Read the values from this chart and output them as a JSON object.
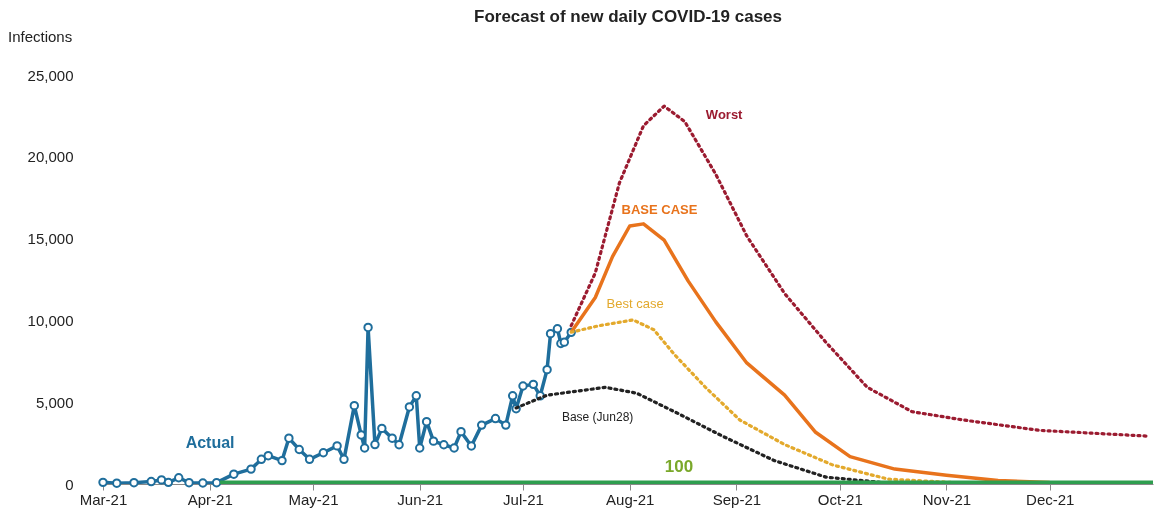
{
  "chart_data": {
    "type": "line",
    "title": "Forecast of new daily COVID-19 cases",
    "ylabel": "Infections",
    "xlim": [
      "2021-03-01",
      "2021-12-31"
    ],
    "xticks": [
      {
        "value": "2021-03-01",
        "label": "Mar-21"
      },
      {
        "value": "2021-04-01",
        "label": "Apr-21"
      },
      {
        "value": "2021-05-01",
        "label": "May-21"
      },
      {
        "value": "2021-06-01",
        "label": "Jun-21"
      },
      {
        "value": "2021-07-01",
        "label": "Jul-21"
      },
      {
        "value": "2021-08-01",
        "label": "Aug-21"
      },
      {
        "value": "2021-09-01",
        "label": "Sep-21"
      },
      {
        "value": "2021-10-01",
        "label": "Oct-21"
      },
      {
        "value": "2021-11-01",
        "label": "Nov-21"
      },
      {
        "value": "2021-12-01",
        "label": "Dec-21"
      }
    ],
    "ylim": [
      0,
      25000
    ],
    "yticks": [
      {
        "value": 0,
        "label": "0"
      },
      {
        "value": 5000,
        "label": "5,000"
      },
      {
        "value": 10000,
        "label": "10,000"
      },
      {
        "value": 15000,
        "label": "15,000"
      },
      {
        "value": 20000,
        "label": "20,000"
      },
      {
        "value": 25000,
        "label": "25,000"
      }
    ],
    "grid": false,
    "series": [
      {
        "name": "Actual",
        "color": "#1f6e9c",
        "marker": "circle",
        "line_style": "solid",
        "x": [
          "2021-03-01",
          "2021-03-05",
          "2021-03-10",
          "2021-03-15",
          "2021-03-18",
          "2021-03-20",
          "2021-03-23",
          "2021-03-26",
          "2021-03-30",
          "2021-04-03",
          "2021-04-08",
          "2021-04-13",
          "2021-04-16",
          "2021-04-18",
          "2021-04-22",
          "2021-04-24",
          "2021-04-27",
          "2021-04-30",
          "2021-05-04",
          "2021-05-08",
          "2021-05-10",
          "2021-05-13",
          "2021-05-15",
          "2021-05-16",
          "2021-05-17",
          "2021-05-19",
          "2021-05-21",
          "2021-05-24",
          "2021-05-26",
          "2021-05-29",
          "2021-05-31",
          "2021-06-01",
          "2021-06-03",
          "2021-06-05",
          "2021-06-08",
          "2021-06-11",
          "2021-06-13",
          "2021-06-16",
          "2021-06-19",
          "2021-06-23",
          "2021-06-26",
          "2021-06-28",
          "2021-06-29",
          "2021-07-01",
          "2021-07-04",
          "2021-07-06",
          "2021-07-08",
          "2021-07-09",
          "2021-07-11",
          "2021-07-12",
          "2021-07-13",
          "2021-07-15"
        ],
        "values": [
          100,
          50,
          80,
          150,
          250,
          100,
          380,
          80,
          60,
          80,
          600,
          910,
          1510,
          1730,
          1430,
          2800,
          2110,
          1510,
          1910,
          2330,
          1510,
          4790,
          3000,
          2200,
          9570,
          2410,
          3400,
          2800,
          2400,
          4710,
          5390,
          2200,
          3810,
          2620,
          2400,
          2200,
          3200,
          2320,
          3600,
          4000,
          3600,
          5390,
          4600,
          5990,
          6090,
          5390,
          6990,
          9190,
          9490,
          8590,
          8670,
          9270
        ]
      },
      {
        "name": "Worst",
        "color": "#9b1b30",
        "marker": "none",
        "line_style": "dotted",
        "x": [
          "2021-07-15",
          "2021-07-22",
          "2021-07-29",
          "2021-08-05",
          "2021-08-11",
          "2021-08-17",
          "2021-08-26",
          "2021-09-04",
          "2021-09-15",
          "2021-09-27",
          "2021-10-09",
          "2021-10-22",
          "2021-11-06",
          "2021-11-28",
          "2021-12-30"
        ],
        "values": [
          9680,
          12900,
          18400,
          21900,
          23100,
          22150,
          18930,
          15160,
          11640,
          8660,
          5910,
          4420,
          3910,
          3280,
          2920
        ]
      },
      {
        "name": "BASE CASE",
        "color": "#e8731c",
        "marker": "none",
        "line_style": "solid",
        "x": [
          "2021-07-15",
          "2021-07-22",
          "2021-07-27",
          "2021-08-01",
          "2021-08-05",
          "2021-08-11",
          "2021-08-18",
          "2021-08-26",
          "2021-09-04",
          "2021-09-15",
          "2021-09-24",
          "2021-10-04",
          "2021-10-17",
          "2021-11-01",
          "2021-11-16",
          "2021-12-01",
          "2021-12-30"
        ],
        "values": [
          9280,
          11400,
          13900,
          15770,
          15900,
          14900,
          12400,
          9910,
          7400,
          5430,
          3160,
          1670,
          910,
          540,
          210,
          90,
          40
        ]
      },
      {
        "name": "Best case",
        "color": "#e3a92c",
        "marker": "none",
        "line_style": "dotted",
        "x": [
          "2021-07-15",
          "2021-07-23",
          "2021-08-02",
          "2021-08-08",
          "2021-08-14",
          "2021-08-23",
          "2021-09-02",
          "2021-09-15",
          "2021-09-29",
          "2021-10-15",
          "2021-11-03"
        ],
        "values": [
          9280,
          9670,
          10030,
          9430,
          7910,
          5910,
          3910,
          2410,
          1160,
          300,
          90
        ]
      },
      {
        "name": "Base (Jun28)",
        "color": "#222222",
        "marker": "none",
        "line_style": "dotted",
        "x": [
          "2021-06-29",
          "2021-07-08",
          "2021-07-25",
          "2021-08-03",
          "2021-08-14",
          "2021-08-28",
          "2021-09-12",
          "2021-09-27",
          "2021-10-15"
        ],
        "values": [
          4650,
          5430,
          5910,
          5550,
          4420,
          2920,
          1430,
          420,
          60
        ]
      },
      {
        "name": "100",
        "color": "#2e9e4f",
        "marker": "none",
        "line_style": "solid",
        "x": [
          "2021-04-04",
          "2021-12-31"
        ],
        "values": [
          100,
          100
        ]
      }
    ]
  }
}
